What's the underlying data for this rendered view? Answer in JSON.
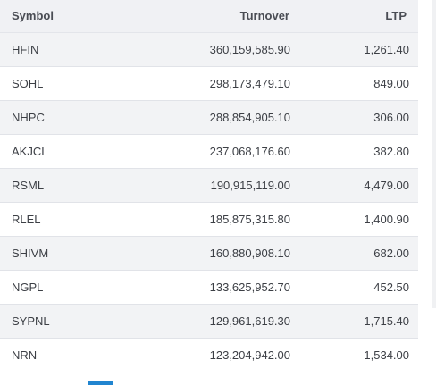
{
  "table": {
    "headers": {
      "symbol": "Symbol",
      "turnover": "Turnover",
      "ltp": "LTP"
    },
    "rows": [
      {
        "symbol": "HFIN",
        "turnover": "360,159,585.90",
        "ltp": "1,261.40"
      },
      {
        "symbol": "SOHL",
        "turnover": "298,173,479.10",
        "ltp": "849.00"
      },
      {
        "symbol": "NHPC",
        "turnover": "288,854,905.10",
        "ltp": "306.00"
      },
      {
        "symbol": "AKJCL",
        "turnover": "237,068,176.60",
        "ltp": "382.80"
      },
      {
        "symbol": "RSML",
        "turnover": "190,915,119.00",
        "ltp": "4,479.00"
      },
      {
        "symbol": "RLEL",
        "turnover": "185,875,315.80",
        "ltp": "1,400.90"
      },
      {
        "symbol": "SHIVM",
        "turnover": "160,880,908.10",
        "ltp": "682.00"
      },
      {
        "symbol": "NGPL",
        "turnover": "133,625,952.70",
        "ltp": "452.50"
      },
      {
        "symbol": "SYPNL",
        "turnover": "129,961,619.30",
        "ltp": "1,715.40"
      },
      {
        "symbol": "NRN",
        "turnover": "123,204,942.00",
        "ltp": "1,534.00"
      }
    ]
  },
  "colors": {
    "header_bg": "#f0f1f4",
    "stripe_bg": "#f2f3f5",
    "accent": "#2185d0"
  }
}
